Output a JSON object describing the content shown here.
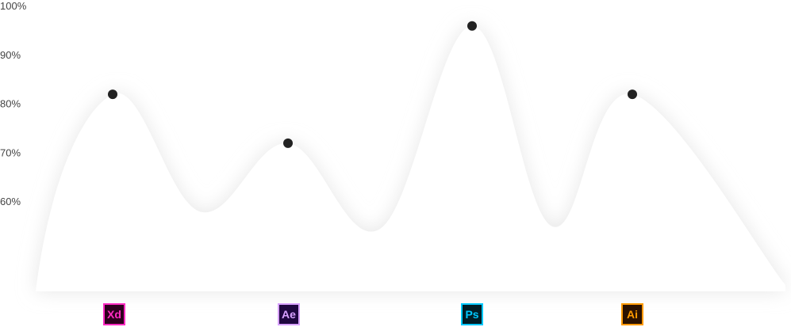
{
  "chart_data": {
    "type": "area",
    "title": "",
    "xlabel": "",
    "ylabel": "",
    "ylim": [
      50,
      100
    ],
    "y_ticks": [
      "60%",
      "70%",
      "80%",
      "90%",
      "100%"
    ],
    "y_tick_values": [
      60,
      70,
      80,
      90,
      100
    ],
    "grid": false,
    "categories": [
      "Xd",
      "Ae",
      "Ps",
      "Ai"
    ],
    "values": [
      82,
      72,
      96,
      82
    ],
    "icons": [
      {
        "label": "Xd",
        "bg": "#2e001e",
        "fg": "#ff2bc2"
      },
      {
        "label": "Ae",
        "bg": "#1f0740",
        "fg": "#d8a1ff"
      },
      {
        "label": "Ps",
        "bg": "#001d26",
        "fg": "#00c8ff"
      },
      {
        "label": "Ai",
        "bg": "#2b1200",
        "fg": "#ff9a00"
      }
    ],
    "colors": {
      "point": "#222222",
      "area": "#ffffff",
      "glow": "#e6e6e6"
    }
  }
}
